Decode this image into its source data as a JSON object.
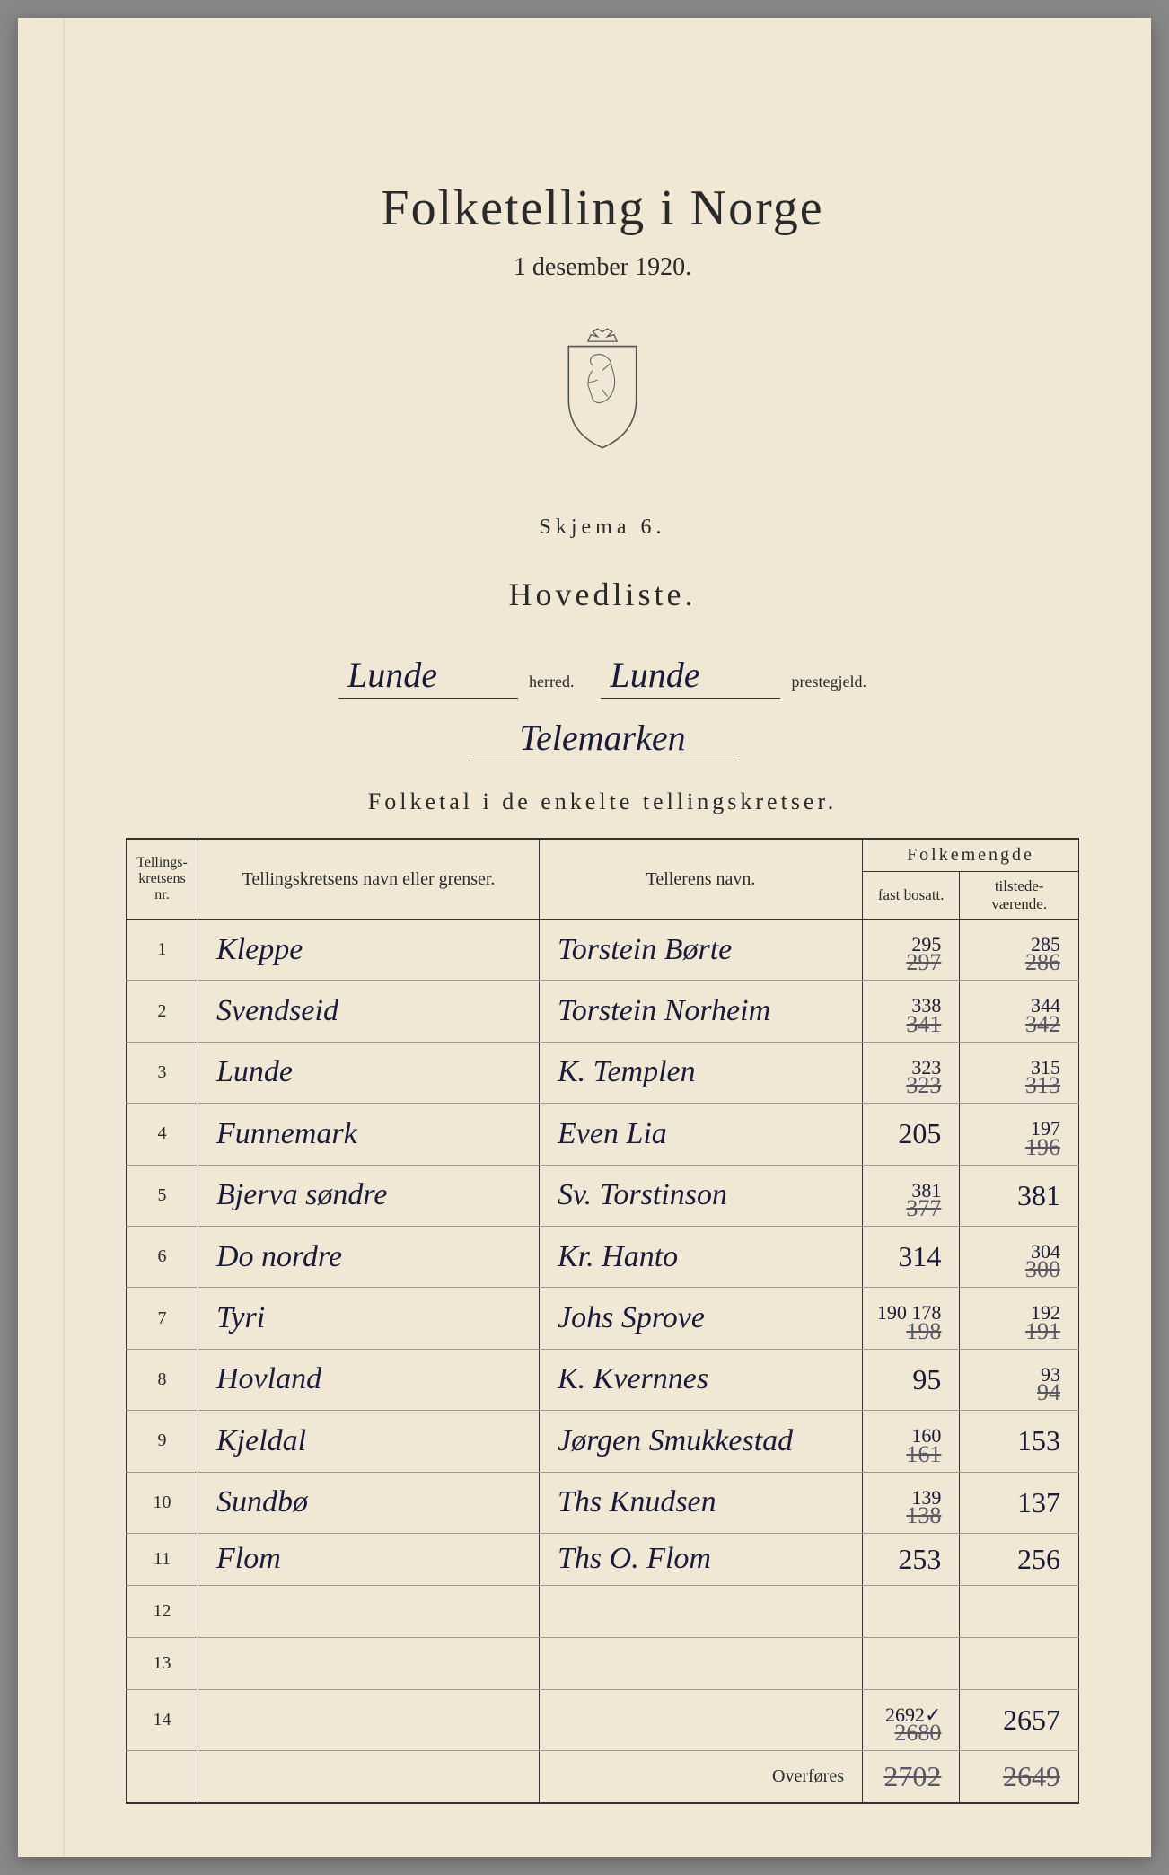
{
  "header": {
    "title": "Folketelling i Norge",
    "date": "1 desember 1920.",
    "skjema": "Skjema 6.",
    "hovedliste": "Hovedliste."
  },
  "form": {
    "herred_value": "Lunde",
    "herred_label": "herred.",
    "prestegjeld_value": "Lunde",
    "prestegjeld_label": "prestegjeld.",
    "region_value": "Telemarken"
  },
  "subtitle": "Folketal i de enkelte tellingskretser.",
  "table": {
    "headers": {
      "nr": "Tellings-\nkretsens\nnr.",
      "navn": "Tellingskretsens navn eller grenser.",
      "teller": "Tellerens navn.",
      "folkemengde": "Folkemengde",
      "fast": "fast bosatt.",
      "tilstede": "tilstede-værende."
    },
    "rows": [
      {
        "nr": "1",
        "navn": "Kleppe",
        "teller": "Torstein Børte",
        "fast_corr": "295",
        "fast": "297",
        "til_corr": "285",
        "til": "286"
      },
      {
        "nr": "2",
        "navn": "Svendseid",
        "teller": "Torstein Norheim",
        "fast_corr": "338",
        "fast": "341",
        "til_corr": "344",
        "til": "342"
      },
      {
        "nr": "3",
        "navn": "Lunde",
        "teller": "K. Templen",
        "fast_corr": "323",
        "fast": "323",
        "til_corr": "315",
        "til": "313"
      },
      {
        "nr": "4",
        "navn": "Funnemark",
        "teller": "Even Lia",
        "fast_corr": "",
        "fast": "205",
        "til_corr": "197",
        "til": "196"
      },
      {
        "nr": "5",
        "navn": "Bjerva søndre",
        "teller": "Sv. Torstinson",
        "fast_corr": "381",
        "fast": "377",
        "til_corr": "",
        "til": "381"
      },
      {
        "nr": "6",
        "navn": "Do nordre",
        "teller": "Kr. Hanto",
        "fast_corr": "",
        "fast": "314",
        "til_corr": "304",
        "til": "300"
      },
      {
        "nr": "7",
        "navn": "Tyri",
        "teller": "Johs Sprove",
        "fast_corr": "190 178",
        "fast": "198",
        "til_corr": "192",
        "til": "191"
      },
      {
        "nr": "8",
        "navn": "Hovland",
        "teller": "K. Kvernnes",
        "fast_corr": "",
        "fast": "95",
        "til_corr": "93",
        "til": "94"
      },
      {
        "nr": "9",
        "navn": "Kjeldal",
        "teller": "Jørgen Smukkestad",
        "fast_corr": "160",
        "fast": "161",
        "til_corr": "",
        "til": "153"
      },
      {
        "nr": "10",
        "navn": "Sundbø",
        "teller": "Ths Knudsen",
        "fast_corr": "139",
        "fast": "138",
        "til_corr": "",
        "til": "137"
      },
      {
        "nr": "11",
        "navn": "Flom",
        "teller": "Ths O. Flom",
        "fast_corr": "",
        "fast": "253",
        "til_corr": "",
        "til": "256"
      },
      {
        "nr": "12",
        "navn": "",
        "teller": "",
        "fast_corr": "",
        "fast": "",
        "til_corr": "",
        "til": ""
      },
      {
        "nr": "13",
        "navn": "",
        "teller": "",
        "fast_corr": "",
        "fast": "",
        "til_corr": "",
        "til": ""
      },
      {
        "nr": "14",
        "navn": "",
        "teller": "",
        "fast_corr": "2692✓",
        "fast": "2680",
        "til_corr": "",
        "til": "2657"
      }
    ],
    "overfores": {
      "label": "Overføres",
      "fast": "2702",
      "til": "2649"
    }
  }
}
